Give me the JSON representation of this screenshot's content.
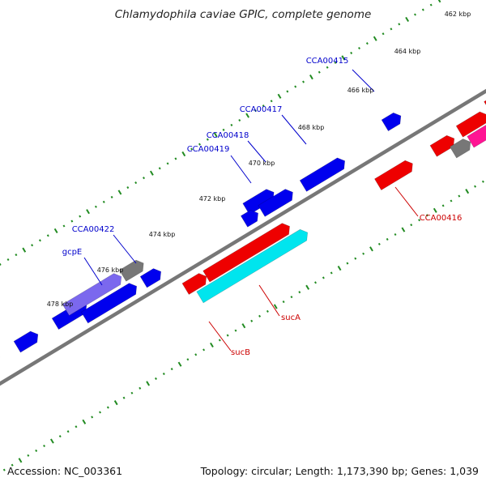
{
  "title": "Chlamydophila caviae GPIC, complete genome",
  "footer": {
    "accession": "Accession: NC_003361",
    "summary": "Topology: circular; Length: 1,173,390 bp; Genes: 1,039"
  },
  "scale_labels": [
    "462 kbp",
    "464 kbp",
    "466 kbp",
    "468 kbp",
    "470 kbp",
    "472 kbp",
    "474 kbp",
    "476 kbp",
    "478 kbp"
  ],
  "gene_labels": [
    "CCA00415",
    "CCA00417",
    "CCA00418",
    "CCA00419",
    "CCA00422",
    "gcpE",
    "CCA00416",
    "sucA",
    "sucB"
  ],
  "colors": {
    "forward_gene": "#0000ee",
    "reverse_gene": "#ee0000",
    "named_gene": "#7b68ee",
    "sucB_gene": "#00e5ee",
    "pink_gene": "#ff1493",
    "grey_gene": "#777777",
    "backbone": "#777777",
    "tick": "#228b22"
  }
}
